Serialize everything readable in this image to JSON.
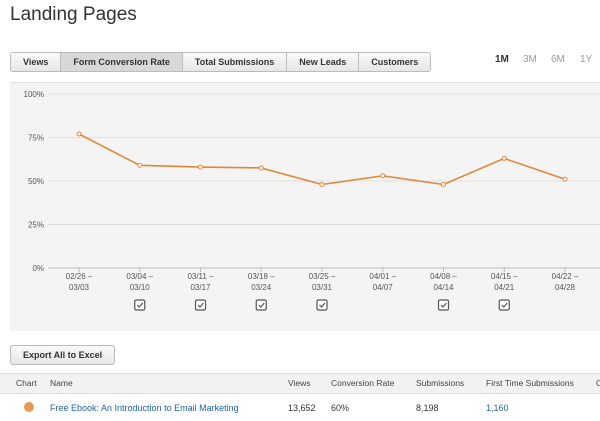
{
  "header": {
    "title": "Landing Pages"
  },
  "tabs": [
    "Views",
    "Form Conversion Rate",
    "Total Submissions",
    "New Leads",
    "Customers"
  ],
  "ranges": [
    "1M",
    "3M",
    "6M",
    "1Y"
  ],
  "chart_data": {
    "type": "line",
    "categories": [
      [
        "02/26 –",
        "03/03"
      ],
      [
        "03/04 –",
        "03/10"
      ],
      [
        "03/11 –",
        "03/17"
      ],
      [
        "03/18 –",
        "03/24"
      ],
      [
        "03/25 –",
        "03/31"
      ],
      [
        "04/01 –",
        "04/07"
      ],
      [
        "04/08 –",
        "04/14"
      ],
      [
        "04/15 –",
        "04/21"
      ],
      [
        "04/22 –",
        "04/28"
      ]
    ],
    "values": [
      77,
      59,
      58,
      57.5,
      48,
      53,
      48,
      63,
      51
    ],
    "color": "#e0883a",
    "ylim": [
      0,
      100
    ],
    "yticks": [
      {
        "value": 0,
        "label": "0%"
      },
      {
        "value": 25,
        "label": "25%"
      },
      {
        "value": 50,
        "label": "50%"
      },
      {
        "value": 75,
        "label": "75%"
      },
      {
        "value": 100,
        "label": "100%"
      }
    ],
    "grid": true
  },
  "export_button": "Export All to Excel",
  "table": {
    "headers": [
      "Chart",
      "Name",
      "Views",
      "Conversion Rate",
      "Submissions",
      "First Time Submissions",
      "C"
    ],
    "rows": [
      [
        "Free Ebook: An Introduction to Email Marketing",
        "13,652",
        "60%",
        "8,198",
        "1,160"
      ]
    ]
  }
}
